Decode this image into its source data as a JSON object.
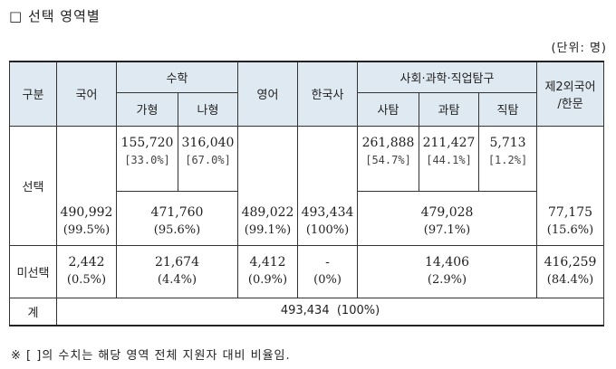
{
  "title": "□ 선택 영역별",
  "unit": "(단위: 명)",
  "headers": {
    "category": "구분",
    "korean": "국어",
    "math": "수학",
    "math_ga": "가형",
    "math_na": "나형",
    "english": "영어",
    "korean_history": "한국사",
    "inquiry": "사회·과학·직업탐구",
    "inquiry_social": "사탐",
    "inquiry_science": "과탐",
    "inquiry_job": "직탐",
    "foreign_line1": "제2외국어",
    "foreign_line2": "/한문"
  },
  "rows": {
    "selected": {
      "label": "선택",
      "math_ga": {
        "count": "155,720",
        "ratio": "[33.0%]"
      },
      "math_na": {
        "count": "316,040",
        "ratio": "[67.0%]"
      },
      "inquiry_social": {
        "count": "261,888",
        "ratio": "[54.7%]"
      },
      "inquiry_science": {
        "count": "211,427",
        "ratio": "[44.1%]"
      },
      "inquiry_job": {
        "count": "5,713",
        "ratio": "[1.2%]"
      },
      "korean": {
        "count": "490,992",
        "pct": "(99.5%)"
      },
      "math_total": {
        "count": "471,760",
        "pct": "(95.6%)"
      },
      "english": {
        "count": "489,022",
        "pct": "(99.1%)"
      },
      "korean_history": {
        "count": "493,434",
        "pct": "(100%)"
      },
      "inquiry_total": {
        "count": "479,028",
        "pct": "(97.1%)"
      },
      "foreign": {
        "count": "77,175",
        "pct": "(15.6%)"
      }
    },
    "unselected": {
      "label": "미선택",
      "korean": {
        "count": "2,442",
        "pct": "(0.5%)"
      },
      "math": {
        "count": "21,674",
        "pct": "(4.4%)"
      },
      "english": {
        "count": "4,412",
        "pct": "(0.9%)"
      },
      "korean_history": {
        "count": "-",
        "pct": "(0%)"
      },
      "inquiry": {
        "count": "14,406",
        "pct": "(2.9%)"
      },
      "foreign": {
        "count": "416,259",
        "pct": "(84.4%)"
      }
    },
    "total": {
      "label": "계",
      "value": "493,434  (100%)"
    }
  },
  "note": "※ [ ]의 수치는 해당 영역 전체 지원자 대비 비율임.",
  "colors": {
    "header_bg": "#dfe9f2",
    "border": "#333333"
  }
}
